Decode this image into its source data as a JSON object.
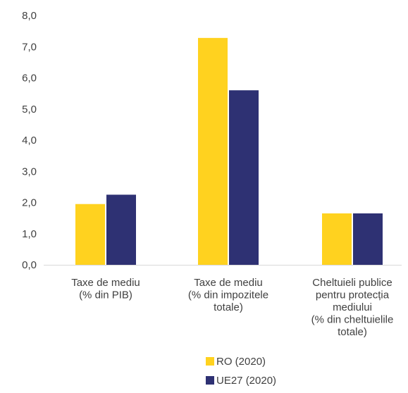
{
  "chart_data": {
    "type": "bar",
    "categories": [
      [
        "Taxe de mediu",
        "(% din PIB)"
      ],
      [
        "Taxe de mediu",
        "(% din impozitele",
        "totale)"
      ],
      [
        "Cheltuieli publice",
        "pentru protecția",
        "mediului",
        "(% din cheltuielile",
        "totale)"
      ]
    ],
    "series": [
      {
        "name": "RO (2020)",
        "values": [
          1.95,
          7.28,
          1.65
        ],
        "color": "#FFD21F"
      },
      {
        "name": "UE27 (2020)",
        "values": [
          2.25,
          5.6,
          1.65
        ],
        "color": "#2E3173"
      }
    ],
    "y_ticks": [
      "0,0",
      "1,0",
      "2,0",
      "3,0",
      "4,0",
      "5,0",
      "6,0",
      "7,0",
      "8,0"
    ],
    "ylim": [
      0,
      8
    ],
    "grid": false,
    "legend_position": "bottom",
    "title": "",
    "xlabel": "",
    "ylabel": ""
  }
}
